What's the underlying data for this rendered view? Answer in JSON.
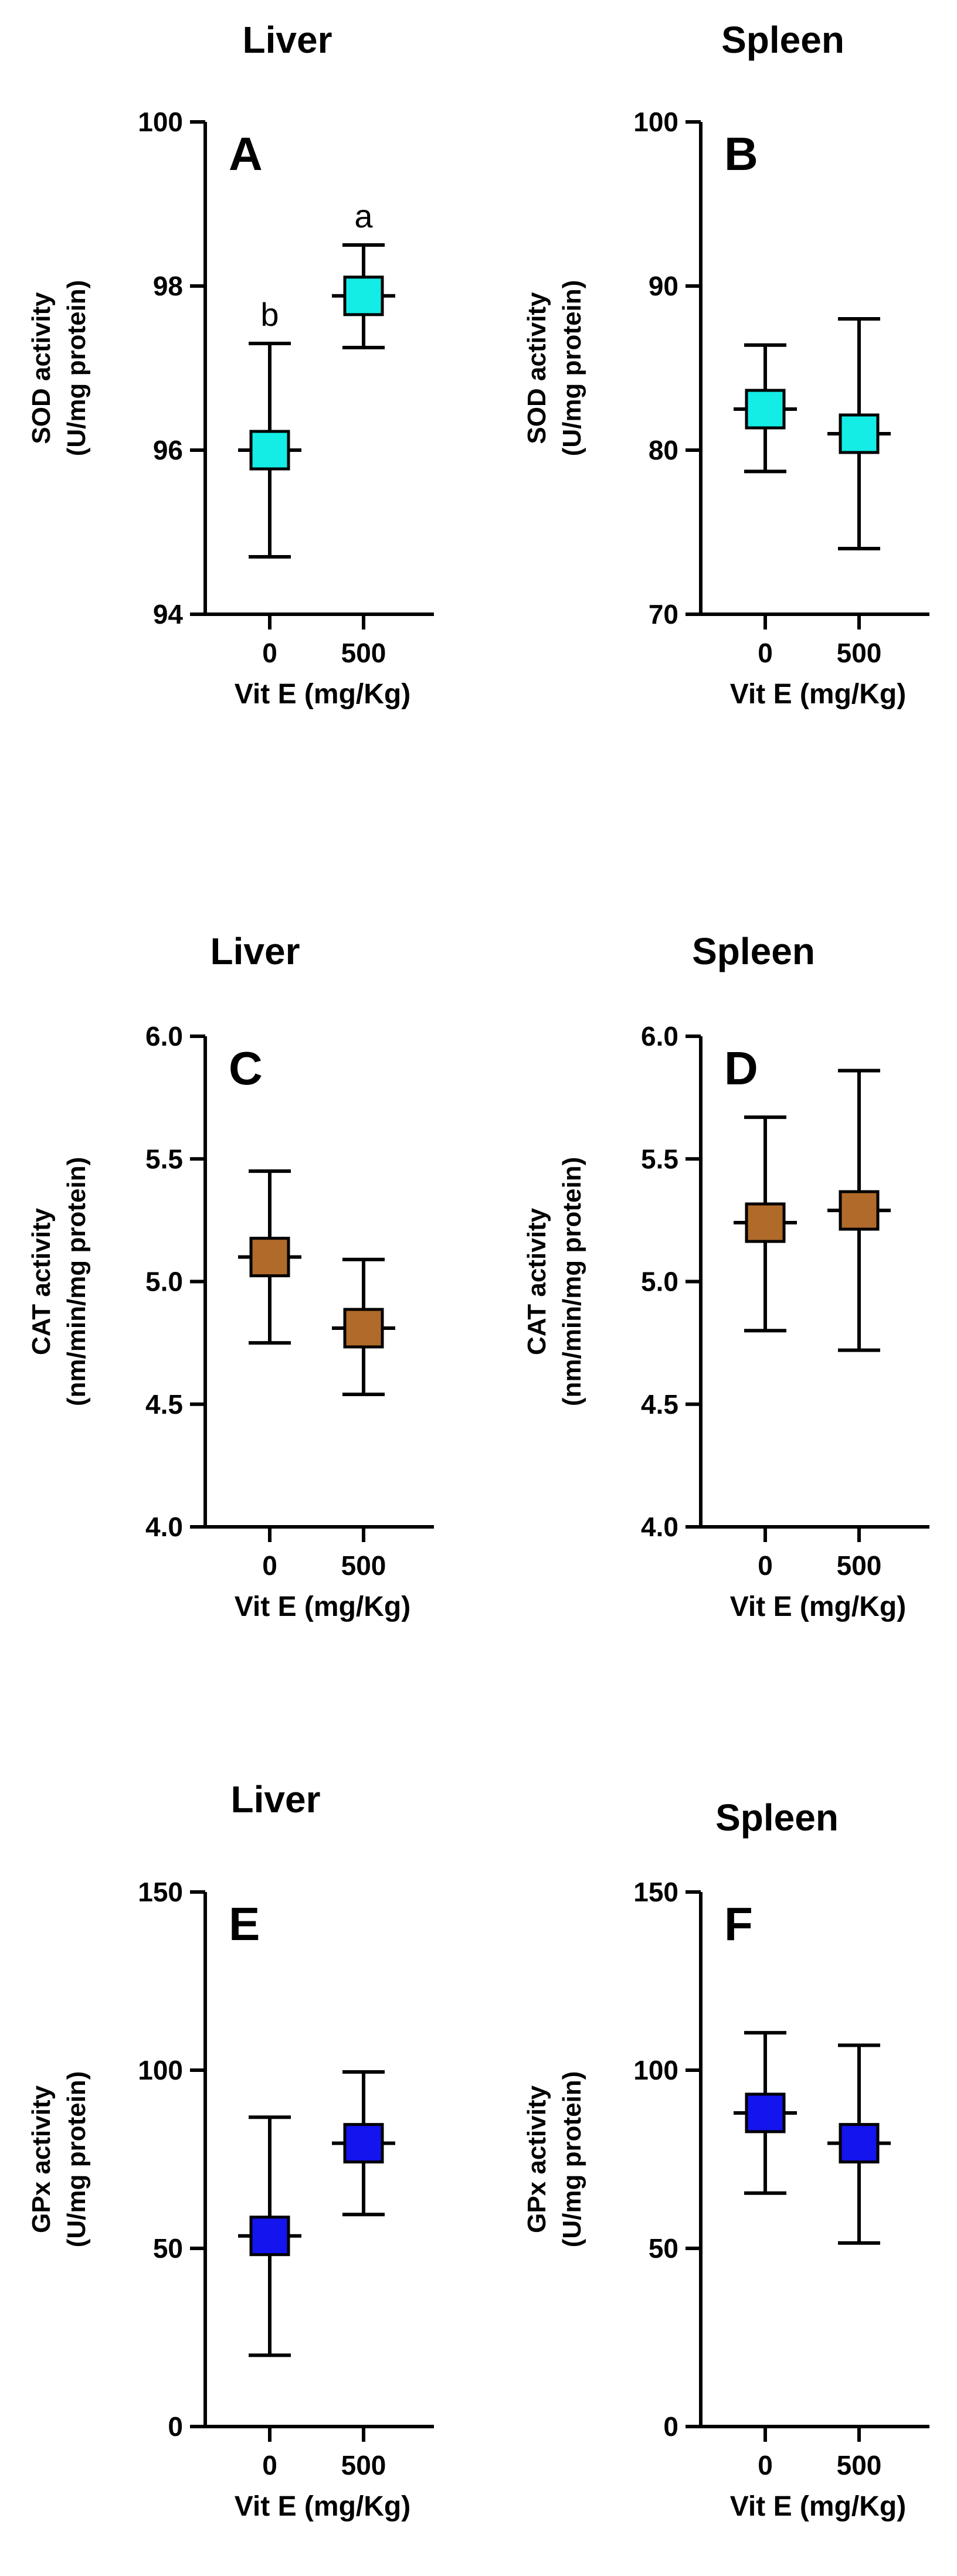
{
  "chart_data": [
    {
      "type": "scatter",
      "panel": "A",
      "title": "Liver",
      "ylabel_line1": "SOD activity",
      "ylabel_line2": "(U/mg protein)",
      "xlabel": "Vit E (mg/Kg)",
      "categories": [
        "0",
        "500"
      ],
      "values": [
        96.0,
        97.88
      ],
      "err_low": [
        94.7,
        97.25
      ],
      "err_high": [
        97.3,
        98.5
      ],
      "ylim": [
        94,
        100
      ],
      "yticks": [
        94,
        96,
        98,
        100
      ],
      "ytick_labels": [
        "94",
        "96",
        "98",
        "100"
      ],
      "annotations": [
        "b",
        "a"
      ],
      "color": "#14ece6"
    },
    {
      "type": "scatter",
      "panel": "B",
      "title": "Spleen",
      "ylabel_line1": "SOD activity",
      "ylabel_line2": "(U/mg protein)",
      "xlabel": "Vit E (mg/Kg)",
      "categories": [
        "0",
        "500"
      ],
      "values": [
        82.5,
        81.0
      ],
      "err_low": [
        78.7,
        74.0
      ],
      "err_high": [
        86.4,
        88.0
      ],
      "ylim": [
        70,
        100
      ],
      "yticks": [
        70,
        80,
        90,
        100
      ],
      "ytick_labels": [
        "70",
        "80",
        "90",
        "100"
      ],
      "annotations": [
        "",
        ""
      ],
      "color": "#14ece6"
    },
    {
      "type": "scatter",
      "panel": "C",
      "title": "Liver",
      "ylabel_line1": "CAT activity",
      "ylabel_line2": "(nm/min/mg protein)",
      "xlabel": "Vit E (mg/Kg)",
      "categories": [
        "0",
        "500"
      ],
      "values": [
        5.1,
        4.81
      ],
      "err_low": [
        4.75,
        4.54
      ],
      "err_high": [
        5.45,
        5.09
      ],
      "ylim": [
        4.0,
        6.0
      ],
      "yticks": [
        4.0,
        4.5,
        5.0,
        5.5,
        6.0
      ],
      "ytick_labels": [
        "4.0",
        "4.5",
        "5.0",
        "5.5",
        "6.0"
      ],
      "annotations": [
        "",
        ""
      ],
      "color": "#b06a2a"
    },
    {
      "type": "scatter",
      "panel": "D",
      "title": "Spleen",
      "ylabel_line1": "CAT activity",
      "ylabel_line2": "(nm/min/mg protein)",
      "xlabel": "Vit E (mg/Kg)",
      "categories": [
        "0",
        "500"
      ],
      "values": [
        5.24,
        5.29
      ],
      "err_low": [
        4.8,
        4.72
      ],
      "err_high": [
        5.67,
        5.86
      ],
      "ylim": [
        4.0,
        6.0
      ],
      "yticks": [
        4.0,
        4.5,
        5.0,
        5.5,
        6.0
      ],
      "ytick_labels": [
        "4.0",
        "4.5",
        "5.0",
        "5.5",
        "6.0"
      ],
      "annotations": [
        "",
        ""
      ],
      "color": "#b06a2a"
    },
    {
      "type": "scatter",
      "panel": "E",
      "title": "Liver",
      "ylabel_line1": "GPx activity",
      "ylabel_line2": "(U/mg protein)",
      "xlabel": "Vit E (mg/Kg)",
      "categories": [
        "0",
        "500"
      ],
      "values": [
        53.5,
        79.5
      ],
      "err_low": [
        20.0,
        59.5
      ],
      "err_high": [
        86.8,
        99.5
      ],
      "ylim": [
        0,
        150
      ],
      "yticks": [
        0,
        50,
        100,
        150
      ],
      "ytick_labels": [
        "0",
        "50",
        "100",
        "150"
      ],
      "annotations": [
        "",
        ""
      ],
      "color": "#1414ee"
    },
    {
      "type": "scatter",
      "panel": "F",
      "title": "Spleen",
      "ylabel_line1": "GPx activity",
      "ylabel_line2": "(U/mg protein)",
      "xlabel": "Vit E (mg/Kg)",
      "categories": [
        "0",
        "500"
      ],
      "values": [
        88.0,
        79.5
      ],
      "err_low": [
        65.5,
        51.5
      ],
      "err_high": [
        110.5,
        107.0
      ],
      "ylim": [
        0,
        150
      ],
      "yticks": [
        0,
        50,
        100,
        150
      ],
      "ytick_labels": [
        "0",
        "50",
        "100",
        "150"
      ],
      "annotations": [
        "",
        ""
      ],
      "color": "#1414ee"
    }
  ]
}
